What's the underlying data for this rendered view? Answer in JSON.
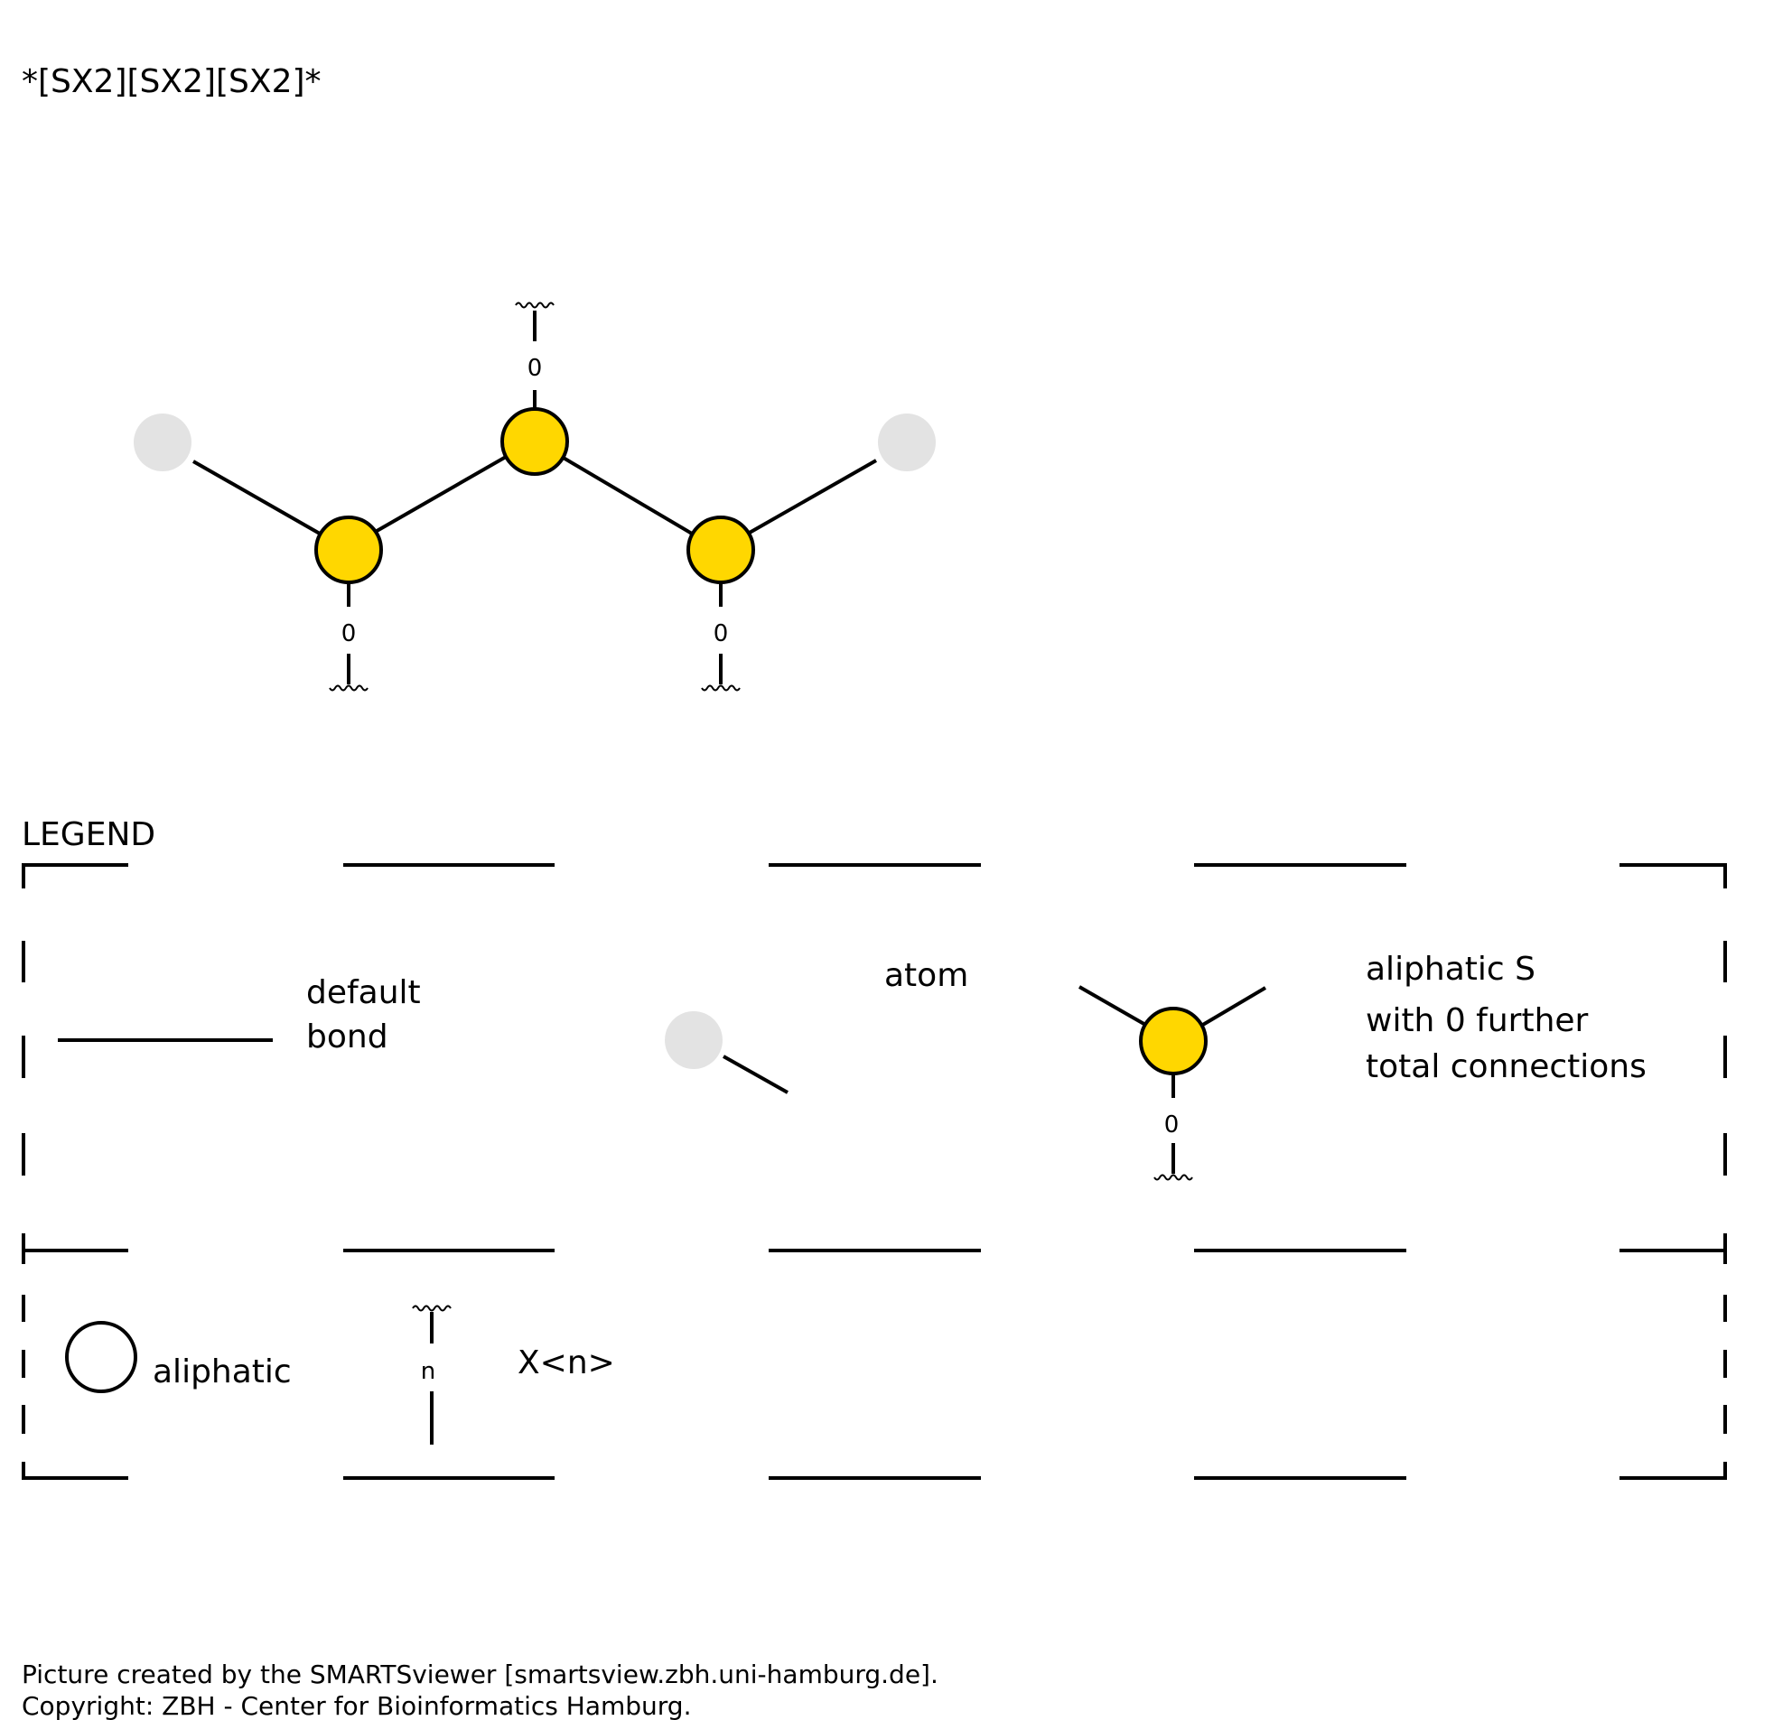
{
  "smarts": "*[SX2][SX2][SX2]*",
  "molecule": {
    "connection_count_labels": [
      "0",
      "0",
      "0"
    ],
    "colors": {
      "sulfur": "#ffd700",
      "any_atom": "#e3e3e3",
      "bond": "#000000"
    }
  },
  "legend": {
    "title": "LEGEND",
    "default_bond": {
      "line1": "default",
      "line2": "bond"
    },
    "atom": {
      "label": "atom"
    },
    "aliphatic_s": {
      "line1": "aliphatic S",
      "line2": "with 0 further",
      "line3": "total connections",
      "count": "0"
    },
    "aliphatic": {
      "label": "aliphatic"
    },
    "xn": {
      "label": "X<n>",
      "count": "n"
    }
  },
  "footer": {
    "line1": "Picture created by the SMARTSviewer [smartsview.zbh.uni-hamburg.de].",
    "line2": "Copyright: ZBH - Center for Bioinformatics Hamburg."
  }
}
